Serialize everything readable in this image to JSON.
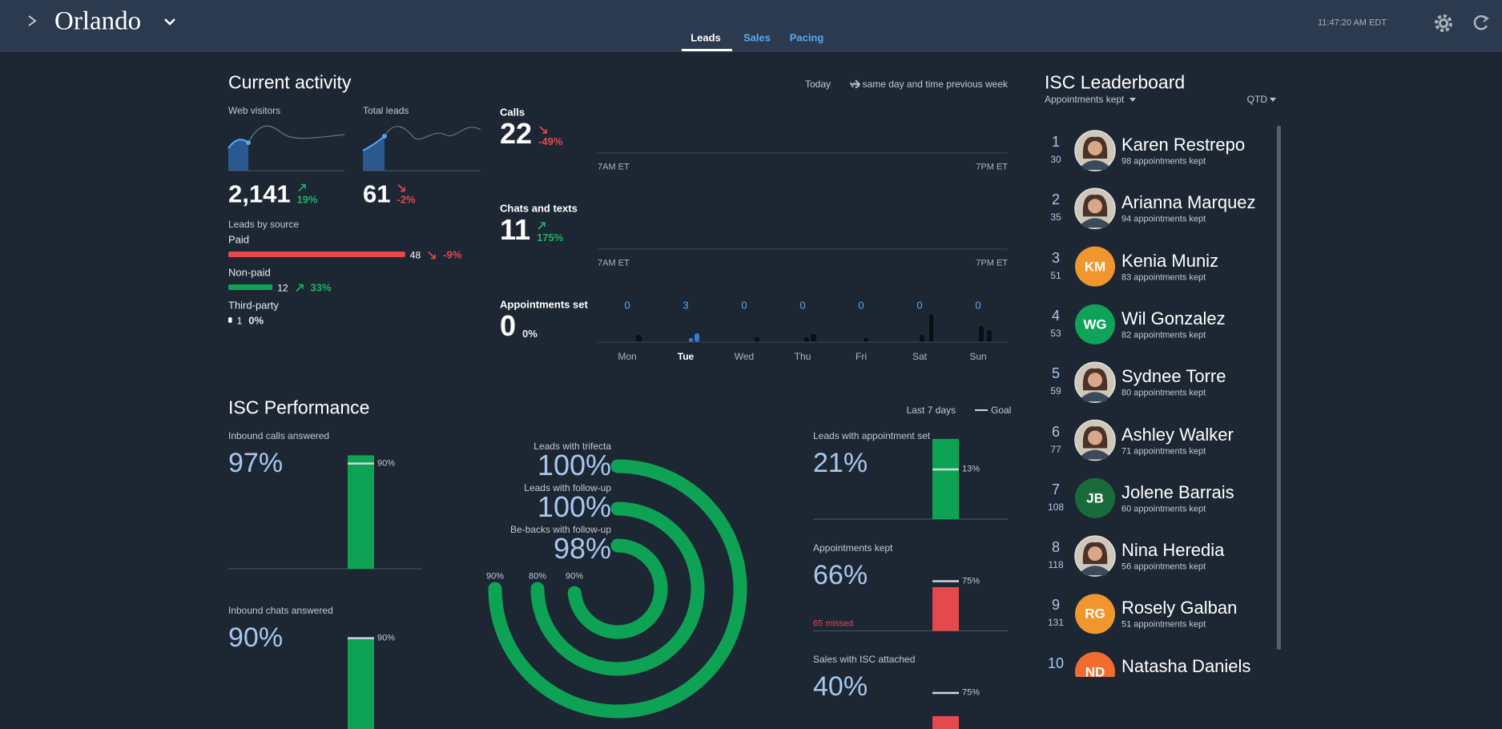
{
  "header": {
    "location": "Orlando",
    "tabs": [
      "Leads",
      "Sales",
      "Pacing"
    ],
    "time": "11:47:20 AM EDT"
  },
  "current_activity": {
    "title": "Current activity",
    "period": "Today",
    "comparison": "vs same day and time previous week",
    "kpis": [
      {
        "label": "Web visitors",
        "value": "2,141",
        "change": "19%",
        "trend": "up"
      },
      {
        "label": "Total leads",
        "value": "61",
        "change": "-2%",
        "trend": "down"
      }
    ],
    "leads_by_source": {
      "title": "Leads by source",
      "sources": [
        {
          "name": "Paid",
          "count": 48,
          "change": "-9%",
          "trend": "down",
          "color": "#e5484d"
        },
        {
          "name": "Non-paid",
          "count": 12,
          "change": "33%",
          "trend": "up",
          "color": "#0ea354"
        },
        {
          "name": "Third-party",
          "count": 1,
          "change": "0%",
          "trend": "flat",
          "color": "#ffffff"
        }
      ]
    },
    "channels": [
      {
        "label": "Calls",
        "value": "22",
        "change": "-49%",
        "trend": "down"
      },
      {
        "label": "Chats and texts",
        "value": "11",
        "change": "175%",
        "trend": "up"
      },
      {
        "label": "Appointments set",
        "value": "0",
        "change": "0%",
        "trend": "flat"
      }
    ],
    "time_axis": [
      "7AM ET",
      "7PM ET"
    ],
    "week": [
      {
        "day": "Mon",
        "count": 0
      },
      {
        "day": "Tue",
        "count": 3,
        "highlight": true
      },
      {
        "day": "Wed",
        "count": 0
      },
      {
        "day": "Thu",
        "count": 0
      },
      {
        "day": "Fri",
        "count": 0
      },
      {
        "day": "Sat",
        "count": 0
      },
      {
        "day": "Sun",
        "count": 0
      }
    ]
  },
  "isc_performance": {
    "title": "ISC Performance",
    "period": "Last 7 days",
    "goal_legend": "Goal",
    "bars_left": [
      {
        "label": "Inbound calls answered",
        "value": "97%",
        "goal": "90%"
      },
      {
        "label": "Inbound chats answered",
        "value": "90%",
        "goal": "90%"
      }
    ],
    "rings": [
      {
        "label": "Leads with trifecta",
        "value": "100%",
        "goal": "90%"
      },
      {
        "label": "Leads with follow-up",
        "value": "100%",
        "goal": "80%"
      },
      {
        "label": "Be-backs with follow-up",
        "value": "98%",
        "goal": "90%"
      }
    ],
    "bars_right": [
      {
        "label": "Leads with appointment set",
        "value": "21%",
        "goal": "13%"
      },
      {
        "label": "Appointments kept",
        "value": "66%",
        "goal": "75%",
        "note": "65 missed"
      },
      {
        "label": "Sales with ISC attached",
        "value": "40%",
        "goal": "75%"
      }
    ]
  },
  "leaderboard": {
    "title": "ISC Leaderboard",
    "metric": "Appointments kept",
    "period": "QTD",
    "entries": [
      {
        "rank": 1,
        "score": 30,
        "name": "Karen Restrepo",
        "detail": "98 appointments kept"
      },
      {
        "rank": 2,
        "score": 35,
        "name": "Arianna Marquez",
        "detail": "94 appointments kept"
      },
      {
        "rank": 3,
        "score": 51,
        "name": "Kenia Muniz",
        "detail": "83 appointments kept",
        "initials": "KM",
        "color": "#f0962e"
      },
      {
        "rank": 4,
        "score": 53,
        "name": "Wil Gonzalez",
        "detail": "82 appointments kept",
        "initials": "WG",
        "color": "#0fa35a"
      },
      {
        "rank": 5,
        "score": 59,
        "name": "Sydnee Torre",
        "detail": "80 appointments kept"
      },
      {
        "rank": 6,
        "score": 77,
        "name": "Ashley Walker",
        "detail": "71 appointments kept"
      },
      {
        "rank": 7,
        "score": 108,
        "name": "Jolene Barrais",
        "detail": "60 appointments kept",
        "initials": "JB",
        "color": "#1a6b3c"
      },
      {
        "rank": 8,
        "score": 118,
        "name": "Nina Heredia",
        "detail": "56 appointments kept"
      },
      {
        "rank": 9,
        "score": 131,
        "name": "Rosely Galban",
        "detail": "51 appointments kept",
        "initials": "RG",
        "color": "#f0962e"
      },
      {
        "rank": 10,
        "name": "Natasha Daniels",
        "initials": "ND",
        "color": "#f06d2f"
      }
    ]
  }
}
